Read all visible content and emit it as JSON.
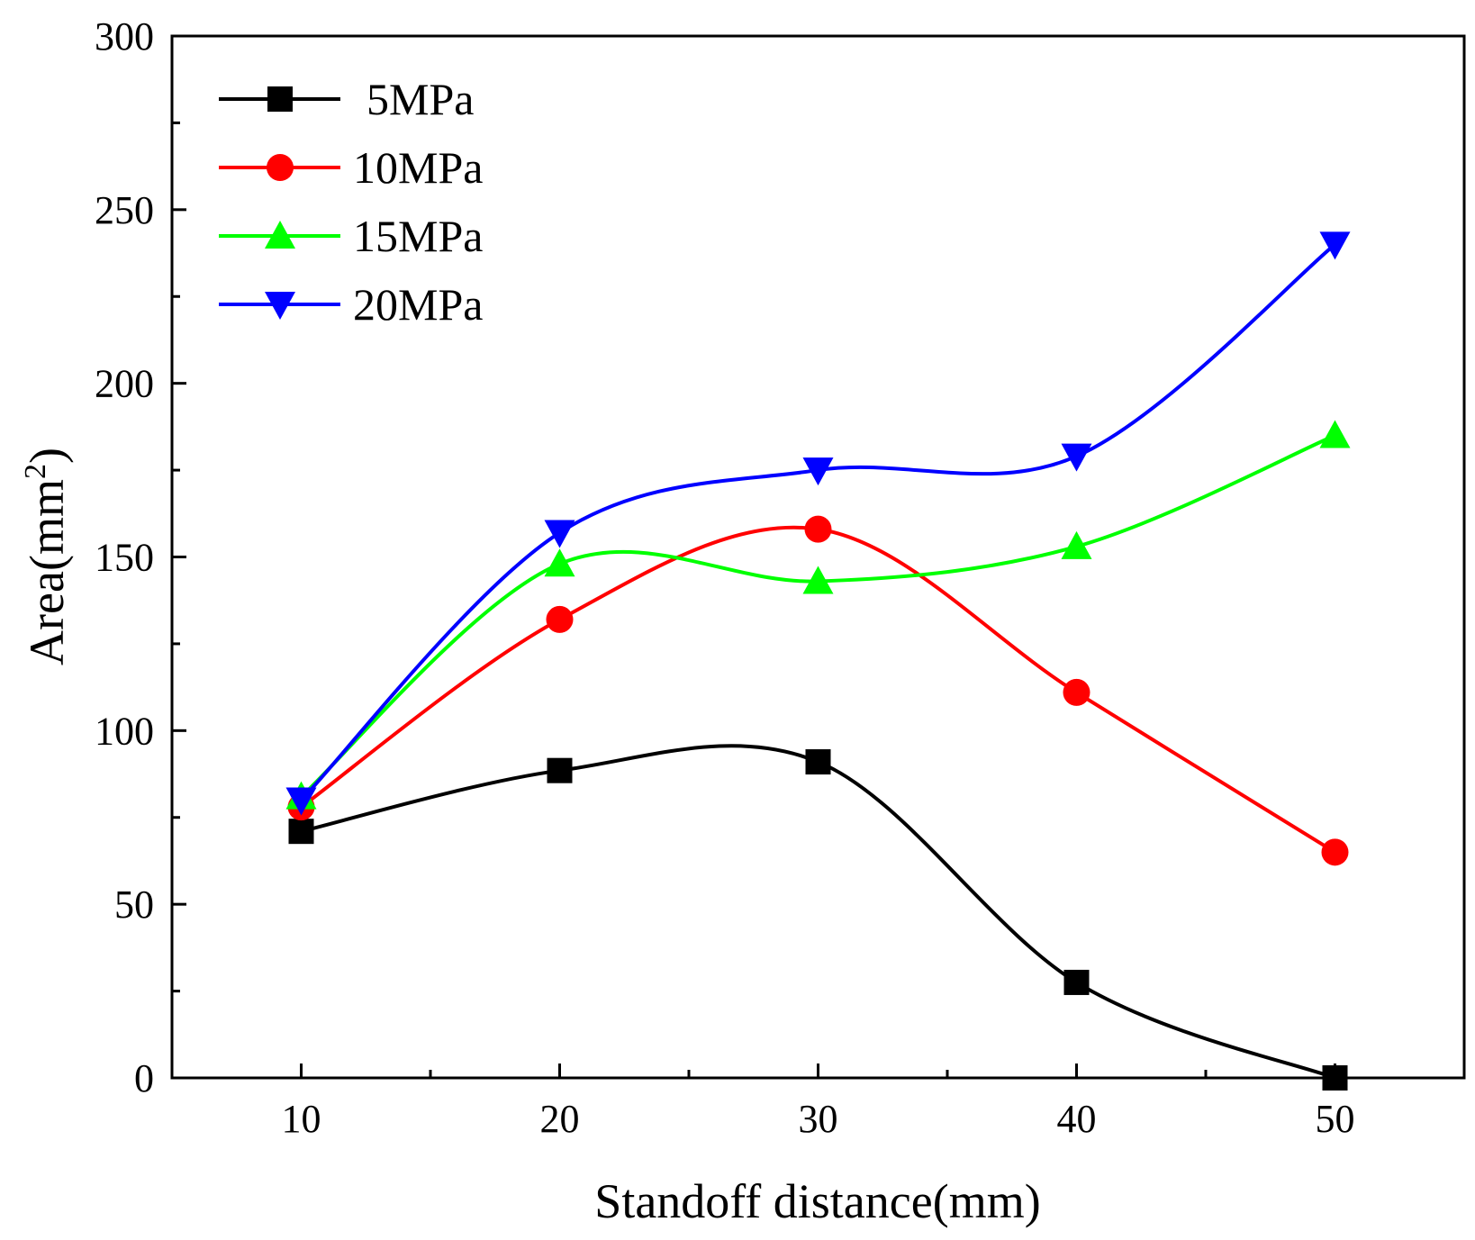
{
  "chart_data": {
    "type": "line",
    "title": "",
    "xlabel": "Standoff distance(mm)",
    "ylabel_base": "Area(mm",
    "ylabel_sup": "2",
    "ylabel_close": ")",
    "xlim": [
      5,
      55
    ],
    "ylim": [
      0,
      300
    ],
    "xticks": [
      10,
      20,
      30,
      40,
      50
    ],
    "xtick_labels": [
      "10",
      "20",
      "30",
      "40",
      "50"
    ],
    "yticks": [
      0,
      50,
      100,
      150,
      200,
      250,
      300
    ],
    "ytick_labels": [
      "0",
      "50",
      "100",
      "150",
      "200",
      "250",
      "300"
    ],
    "grid": false,
    "legend_position": "top-left",
    "x": [
      10,
      20,
      30,
      40,
      50
    ],
    "series": [
      {
        "name": "5MPa",
        "values": [
          71,
          88.5,
          91,
          27.5,
          0
        ],
        "color": "#000000",
        "marker": "square"
      },
      {
        "name": "10MPa",
        "values": [
          78,
          132,
          158,
          111,
          65
        ],
        "color": "#ff0000",
        "marker": "circle"
      },
      {
        "name": "15MPa",
        "values": [
          81,
          148,
          143,
          153,
          185
        ],
        "color": "#00ff00",
        "marker": "triangle-up"
      },
      {
        "name": "20MPa",
        "values": [
          80,
          157,
          175,
          179,
          240
        ],
        "color": "#0000ff",
        "marker": "triangle-down"
      }
    ]
  }
}
